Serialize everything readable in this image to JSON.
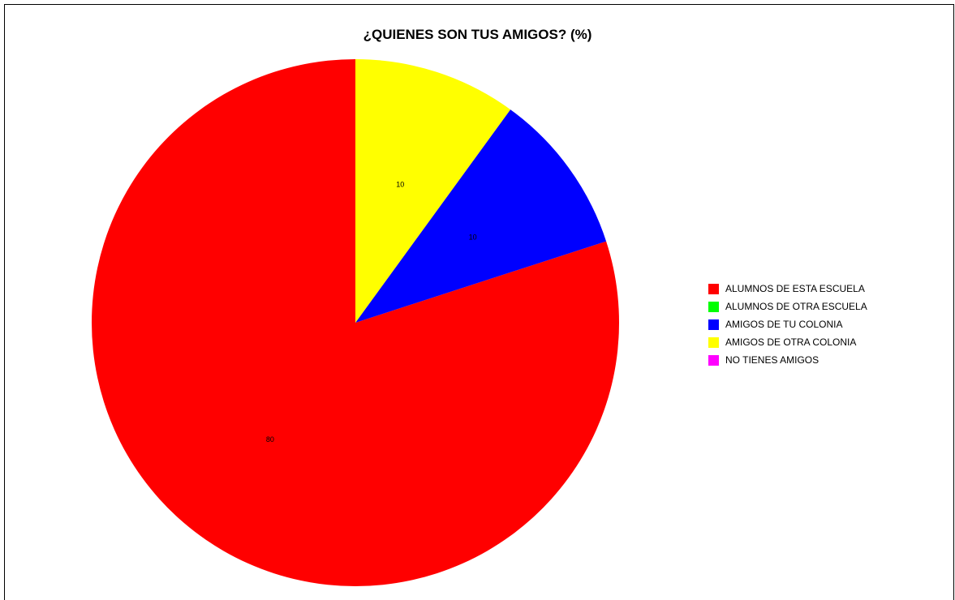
{
  "chart_data": {
    "type": "pie",
    "title": "¿QUIENES SON TUS AMIGOS? (%)",
    "start_angle_deg": 90,
    "direction": "counterclockwise",
    "legend_position": "right",
    "slices": [
      {
        "name": "ALUMNOS DE ESTA ESCUELA",
        "value": 80,
        "label": "80",
        "color": "#ff0000"
      },
      {
        "name": "ALUMNOS DE OTRA ESCUELA",
        "value": 0,
        "label": "",
        "color": "#00ff00"
      },
      {
        "name": "AMIGOS DE TU COLONIA",
        "value": 10,
        "label": "10",
        "color": "#0000ff"
      },
      {
        "name": "AMIGOS DE OTRA COLONIA",
        "value": 10,
        "label": "10",
        "color": "#ffff00"
      },
      {
        "name": "NO TIENES AMIGOS",
        "value": 0,
        "label": "",
        "color": "#ff00ff"
      }
    ]
  }
}
